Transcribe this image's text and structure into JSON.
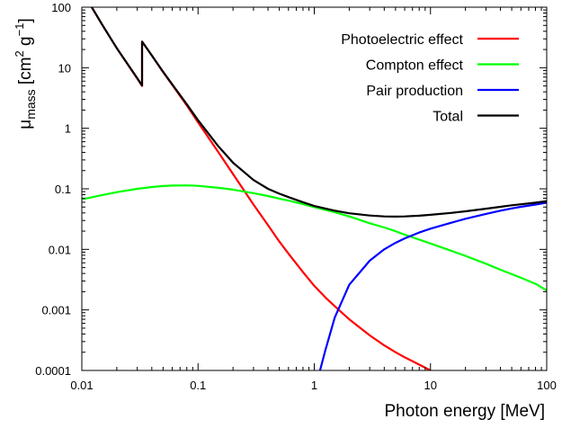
{
  "chart_data": {
    "type": "line",
    "xlabel": "Photon energy [MeV]",
    "ylabel": {
      "base": "μ",
      "sub": "mass",
      "unit_open": " [cm",
      "unit_sup1": "2",
      "unit_mid": " g",
      "unit_sup2": "−1",
      "unit_close": "]"
    },
    "xscale": "log",
    "yscale": "log",
    "xlim": [
      0.01,
      100
    ],
    "ylim": [
      0.0001,
      100
    ],
    "xticks": [
      0.01,
      0.1,
      1,
      10,
      100
    ],
    "xtick_labels": [
      "0.01",
      "0.1",
      "1",
      "10",
      "100"
    ],
    "yticks": [
      0.0001,
      0.001,
      0.01,
      0.1,
      1,
      10,
      100
    ],
    "ytick_labels": [
      "0.0001",
      "0.001",
      "0.01",
      "0.1",
      "1",
      "10",
      "100"
    ],
    "grid": false,
    "legend_position": "top-right",
    "series": [
      {
        "name": "Photoelectric effect",
        "color": "#ff0000",
        "x": [
          0.01,
          0.012,
          0.015,
          0.02,
          0.03,
          0.033,
          0.033,
          0.04,
          0.05,
          0.06,
          0.08,
          0.1,
          0.15,
          0.2,
          0.3,
          0.4,
          0.5,
          0.6,
          0.8,
          1,
          1.25,
          1.5,
          2,
          3,
          4,
          5,
          6,
          8,
          10
        ],
        "y": [
          180,
          105,
          51,
          21,
          6.6,
          5.0,
          27,
          16,
          8.5,
          5.2,
          2.4,
          1.25,
          0.4,
          0.175,
          0.055,
          0.025,
          0.0135,
          0.0085,
          0.0042,
          0.0025,
          0.0016,
          0.00115,
          0.0007,
          0.00038,
          0.00026,
          0.0002,
          0.000165,
          0.000125,
          0.0001
        ]
      },
      {
        "name": "Compton effect",
        "color": "#00ff00",
        "x": [
          0.01,
          0.015,
          0.02,
          0.03,
          0.04,
          0.05,
          0.06,
          0.08,
          0.1,
          0.15,
          0.2,
          0.3,
          0.4,
          0.5,
          0.6,
          0.8,
          1,
          1.5,
          2,
          3,
          4,
          5,
          6,
          8,
          10,
          15,
          20,
          30,
          40,
          50,
          60,
          80,
          100
        ],
        "y": [
          0.067,
          0.079,
          0.088,
          0.1,
          0.107,
          0.111,
          0.113,
          0.114,
          0.112,
          0.104,
          0.097,
          0.085,
          0.076,
          0.069,
          0.064,
          0.056,
          0.05,
          0.041,
          0.035,
          0.027,
          0.023,
          0.02,
          0.0175,
          0.0145,
          0.0125,
          0.0095,
          0.0078,
          0.0058,
          0.0046,
          0.0039,
          0.0034,
          0.0027,
          0.0021
        ]
      },
      {
        "name": "Pair production",
        "color": "#0000ff",
        "x": [
          1.12,
          1.25,
          1.5,
          2,
          3,
          4,
          5,
          6,
          8,
          10,
          15,
          20,
          30,
          40,
          50,
          60,
          80,
          100
        ],
        "y": [
          0.0001,
          0.00022,
          0.00075,
          0.0026,
          0.0065,
          0.01,
          0.0128,
          0.0152,
          0.019,
          0.022,
          0.0275,
          0.032,
          0.0385,
          0.0435,
          0.0475,
          0.0505,
          0.055,
          0.059
        ]
      },
      {
        "name": "Total",
        "color": "#000000",
        "x": [
          0.01,
          0.012,
          0.015,
          0.02,
          0.03,
          0.033,
          0.033,
          0.04,
          0.05,
          0.06,
          0.08,
          0.1,
          0.15,
          0.2,
          0.3,
          0.4,
          0.5,
          0.6,
          0.8,
          1,
          1.5,
          2,
          3,
          4,
          5,
          6,
          8,
          10,
          15,
          20,
          30,
          40,
          50,
          60,
          80,
          100
        ],
        "y": [
          180,
          105,
          51,
          21,
          6.7,
          5.1,
          27,
          16,
          8.6,
          5.3,
          2.5,
          1.36,
          0.5,
          0.27,
          0.14,
          0.1,
          0.083,
          0.073,
          0.06,
          0.052,
          0.0435,
          0.0395,
          0.0362,
          0.035,
          0.0348,
          0.035,
          0.036,
          0.0372,
          0.04,
          0.0425,
          0.047,
          0.0505,
          0.0535,
          0.0555,
          0.059,
          0.0625
        ]
      }
    ]
  }
}
